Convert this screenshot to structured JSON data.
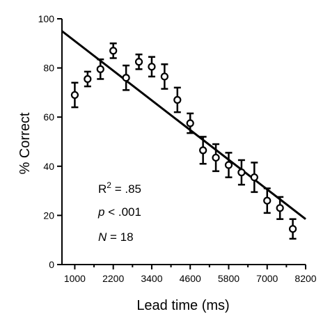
{
  "chart_data": {
    "type": "scatter",
    "xlabel": "Lead time (ms)",
    "ylabel": "% Correct",
    "xlim": [
      600,
      8200
    ],
    "ylim": [
      0,
      100
    ],
    "x_ticks": [
      1000,
      2200,
      3400,
      4600,
      5800,
      7000,
      8200
    ],
    "x_tick_labels": [
      "1000",
      "2200",
      "3400",
      "4600",
      "5800",
      "7000",
      "8200"
    ],
    "x_minor_ticks": [
      1600,
      2800,
      4000,
      5200,
      6400,
      7600
    ],
    "y_ticks": [
      0,
      20,
      40,
      60,
      80,
      100
    ],
    "y_tick_labels": [
      "0",
      "20",
      "40",
      "60",
      "80",
      "100"
    ],
    "grid": false,
    "points": [
      {
        "x": 1000,
        "y": 69,
        "err": 5
      },
      {
        "x": 1400,
        "y": 75.5,
        "err": 3
      },
      {
        "x": 1800,
        "y": 79.5,
        "err": 4
      },
      {
        "x": 2200,
        "y": 87,
        "err": 3
      },
      {
        "x": 2600,
        "y": 76,
        "err": 5
      },
      {
        "x": 3000,
        "y": 82.5,
        "err": 3
      },
      {
        "x": 3400,
        "y": 80.5,
        "err": 4
      },
      {
        "x": 3800,
        "y": 76.5,
        "err": 5
      },
      {
        "x": 4200,
        "y": 67,
        "err": 5
      },
      {
        "x": 4600,
        "y": 57.5,
        "err": 4
      },
      {
        "x": 5000,
        "y": 46.5,
        "err": 5.5
      },
      {
        "x": 5400,
        "y": 43.5,
        "err": 5.5
      },
      {
        "x": 5800,
        "y": 40.5,
        "err": 5
      },
      {
        "x": 6200,
        "y": 37.5,
        "err": 5
      },
      {
        "x": 6600,
        "y": 35.5,
        "err": 6
      },
      {
        "x": 7000,
        "y": 26,
        "err": 5
      },
      {
        "x": 7400,
        "y": 23,
        "err": 4.5
      },
      {
        "x": 7800,
        "y": 14.5,
        "err": 4
      }
    ],
    "regression_line": {
      "x": [
        600,
        8200
      ],
      "y": [
        95,
        18.5
      ]
    },
    "annotations": {
      "r2_main": "R",
      "r2_sup": "2",
      "r2_value": " = .85",
      "p_italic": "p",
      "p_value": " < .001",
      "n_italic": "N",
      "n_value": " = 18"
    }
  }
}
